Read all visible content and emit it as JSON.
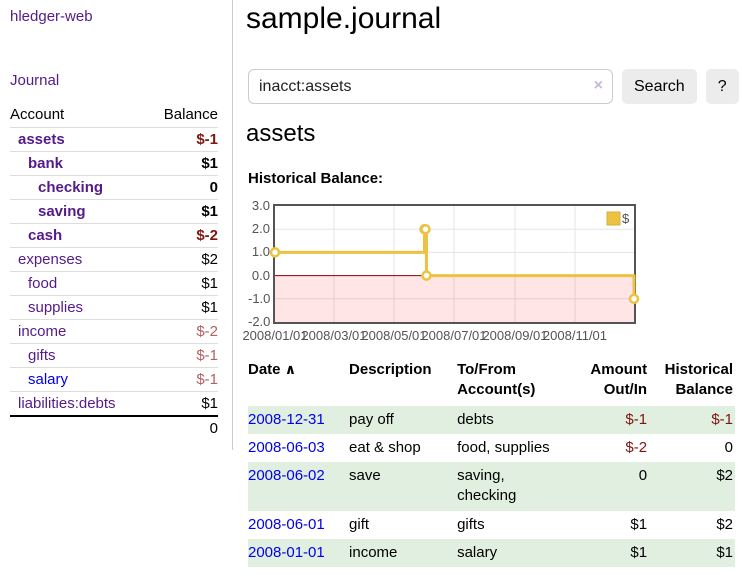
{
  "colors": {
    "link_visited": "#551a8b",
    "link_unvisited": "#0000ee",
    "negative_strong": "#7e1511",
    "negative_soft": "#b16161",
    "row_stripe": "#e0efe0",
    "chart_line": "#edc240",
    "chart_border": "#545454",
    "negative_region": "rgba(255,0,0,0.10)",
    "zero_line": "#8b0000"
  },
  "sidebar": {
    "brand": "hledger-web",
    "journal_link": "Journal",
    "accounts_table": {
      "headers": {
        "account": "Account",
        "balance": "Balance"
      },
      "rows": [
        {
          "account": "assets",
          "balance": "$-1",
          "level": 1,
          "bold": true,
          "balance_style": "neg-strong"
        },
        {
          "account": "bank",
          "balance": "$1",
          "level": 2,
          "bold": true,
          "balance_style": ""
        },
        {
          "account": "checking",
          "balance": "0",
          "level": 3,
          "bold": true,
          "balance_style": ""
        },
        {
          "account": "saving",
          "balance": "$1",
          "level": 3,
          "bold": true,
          "balance_style": ""
        },
        {
          "account": "cash",
          "balance": "$-2",
          "level": 2,
          "bold": true,
          "balance_style": "neg-strong"
        },
        {
          "account": "expenses",
          "balance": "$2",
          "level": 1,
          "bold": false,
          "balance_style": ""
        },
        {
          "account": "food",
          "balance": "$1",
          "level": 2,
          "bold": false,
          "balance_style": ""
        },
        {
          "account": "supplies",
          "balance": "$1",
          "level": 2,
          "bold": false,
          "balance_style": ""
        },
        {
          "account": "income",
          "balance": "$-2",
          "level": 1,
          "bold": false,
          "balance_style": "neg-soft"
        },
        {
          "account": "gifts",
          "balance": "$-1",
          "level": 2,
          "bold": false,
          "balance_style": "neg-soft"
        },
        {
          "account": "salary",
          "balance": "$-1",
          "level": 2,
          "bold": false,
          "balance_style": "neg-soft",
          "link_style": "unvisited"
        },
        {
          "account": "liabilities:debts",
          "balance": "$1",
          "level": 1,
          "bold": false,
          "balance_style": ""
        }
      ],
      "total": "0"
    }
  },
  "main": {
    "title": "sample.journal",
    "search": {
      "value": "inacct:assets",
      "clear_icon": "×",
      "search_button": "Search",
      "help_button": "?"
    },
    "account_heading": "assets",
    "chart_label": "Historical Balance:"
  },
  "chart_data": {
    "type": "line",
    "step": true,
    "title": "Historical Balance",
    "legend": {
      "label": "$",
      "position": "top-right"
    },
    "x_axis": {
      "unit": "days_since_2008-01-01",
      "range": [
        0,
        365
      ]
    },
    "y_axis": {
      "range": [
        -2,
        3
      ]
    },
    "series": [
      {
        "name": "$",
        "color": "#edc240",
        "points": [
          {
            "date": "2008-01-01",
            "day": 0,
            "value": 1
          },
          {
            "date": "2008-06-01",
            "day": 152,
            "value": 2
          },
          {
            "date": "2008-06-02",
            "day": 153,
            "value": 2
          },
          {
            "date": "2008-06-03",
            "day": 154,
            "value": 0
          },
          {
            "date": "2008-12-31",
            "day": 365,
            "value": -1
          }
        ]
      }
    ],
    "x_ticks": [
      {
        "day": 0,
        "label": "2008/01/01"
      },
      {
        "day": 60,
        "label": "2008/03/01"
      },
      {
        "day": 121,
        "label": "2008/05/01"
      },
      {
        "day": 182,
        "label": "2008/07/01"
      },
      {
        "day": 244,
        "label": "2008/09/01"
      },
      {
        "day": 305,
        "label": "2008/11/01"
      }
    ],
    "y_ticks": [
      "3.0",
      "2.0",
      "1.0",
      "0.0",
      "-1.0",
      "-2.0"
    ],
    "grid": true
  },
  "register_table": {
    "headers": {
      "date": "Date",
      "sort_icon": "∧",
      "description": "Description",
      "accounts": "To/From\nAccount(s)",
      "amount": "Amount\nOut/In",
      "balance": "Historical\nBalance"
    },
    "rows": [
      {
        "date": "2008-12-31",
        "description": "pay off",
        "accounts": "debts",
        "amount": "$-1",
        "balance": "$-1",
        "amount_style": "neg-strong",
        "balance_style": "neg-strong",
        "stripe": true
      },
      {
        "date": "2008-06-03",
        "description": "eat & shop",
        "accounts": "food, supplies",
        "amount": "$-2",
        "balance": "0",
        "amount_style": "neg-strong",
        "balance_style": "",
        "stripe": false
      },
      {
        "date": "2008-06-02",
        "description": "save",
        "accounts": "saving,\nchecking",
        "amount": "0",
        "balance": "$2",
        "amount_style": "",
        "balance_style": "",
        "stripe": true
      },
      {
        "date": "2008-06-01",
        "description": "gift",
        "accounts": "gifts",
        "amount": "$1",
        "balance": "$2",
        "amount_style": "",
        "balance_style": "",
        "stripe": false
      },
      {
        "date": "2008-01-01",
        "description": "income",
        "accounts": "salary",
        "amount": "$1",
        "balance": "$1",
        "amount_style": "",
        "balance_style": "",
        "stripe": true
      }
    ]
  }
}
